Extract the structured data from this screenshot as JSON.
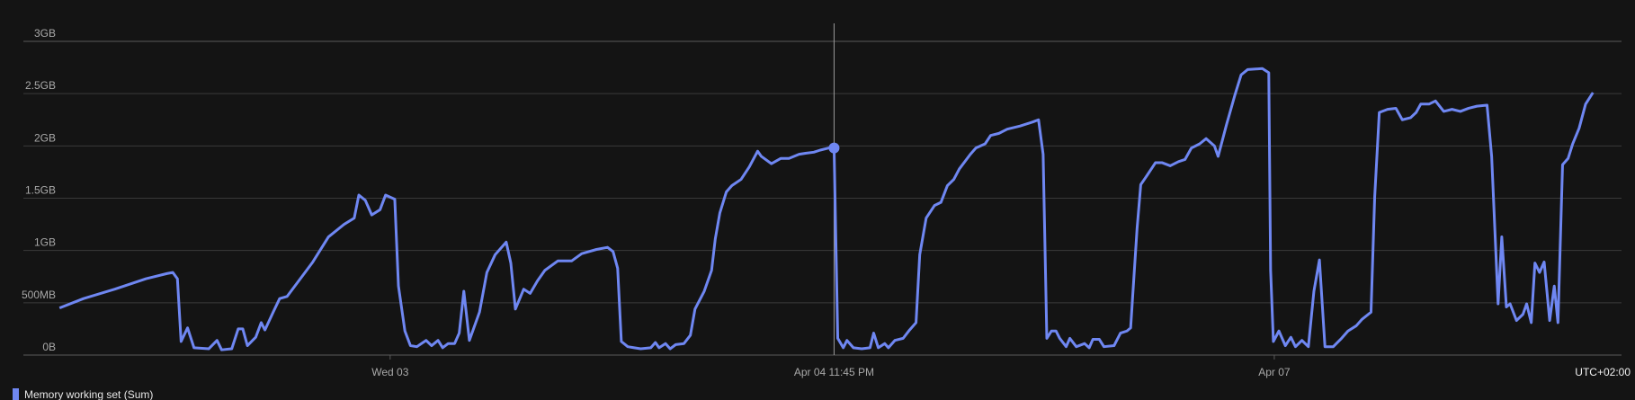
{
  "chart_data": {
    "type": "line",
    "x": [
      -35.9,
      -33.3,
      -29.9,
      -26.5,
      -24.2,
      -23.6,
      -23.1,
      -22.7,
      -22.0,
      -21.3,
      -19.7,
      -18.8,
      -18.3,
      -17.2,
      -16.5,
      -16.0,
      -15.5,
      -14.6,
      -14.0,
      -13.6,
      -12.7,
      -12.0,
      -11.2,
      -9.5,
      -8.4,
      -6.7,
      -5.0,
      -3.9,
      -3.4,
      -2.7,
      -2.0,
      -1.1,
      -0.5,
      0.5,
      0.9,
      1.6,
      2.2,
      2.9,
      3.9,
      4.5,
      5.2,
      5.7,
      6.3,
      7.0,
      7.5,
      8.0,
      8.6,
      9.7,
      10.5,
      11.4,
      12.6,
      13.1,
      13.6,
      14.5,
      15.2,
      16.0,
      16.8,
      18.2,
      19.7,
      20.8,
      22.4,
      23.6,
      24.2,
      24.7,
      25.1,
      25.8,
      26.5,
      27.2,
      28.3,
      28.8,
      29.2,
      29.9,
      30.4,
      31.0,
      31.9,
      32.6,
      33.1,
      34.1,
      34.9,
      35.3,
      35.8,
      36.5,
      37.1,
      38.1,
      39.0,
      39.9,
      40.3,
      41.4,
      42.4,
      43.3,
      44.4,
      45.1,
      46.0,
      46.7,
      47.6,
      48.2,
      48.6,
      49.2,
      49.6,
      50.3,
      51.2,
      52.1,
      52.5,
      53.0,
      53.7,
      54.1,
      54.8,
      55.7,
      56.4,
      57.1,
      57.5,
      58.2,
      59.1,
      59.8,
      60.5,
      61.2,
      61.8,
      63.0,
      63.6,
      64.6,
      65.2,
      66.1,
      67.0,
      68.4,
      69.8,
      70.4,
      70.9,
      71.3,
      71.8,
      72.3,
      72.7,
      73.4,
      73.8,
      74.5,
      75.4,
      75.9,
      76.3,
      77.0,
      77.5,
      78.6,
      79.3,
      80.0,
      80.4,
      81.1,
      81.5,
      82.2,
      83.1,
      83.8,
      84.7,
      85.6,
      86.3,
      87.0,
      87.9,
      88.6,
      89.5,
      89.9,
      90.8,
      91.7,
      92.4,
      93.1,
      94.7,
      95.4,
      95.6,
      95.9,
      96.5,
      97.2,
      97.8,
      98.3,
      99.0,
      99.7,
      100.3,
      100.9,
      101.5,
      102.4,
      103.3,
      104.0,
      104.9,
      105.5,
      106.5,
      106.9,
      107.4,
      108.3,
      109.2,
      109.9,
      110.8,
      111.4,
      111.9,
      112.8,
      113.5,
      114.4,
      115.3,
      116.2,
      117.1,
      118.0,
      119.1,
      119.6,
      120.3,
      120.7,
      121.2,
      121.6,
      122.3,
      123.0,
      123.4,
      123.9,
      124.3,
      124.8,
      125.3,
      125.9,
      126.4,
      126.8,
      127.3,
      127.9,
      128.4,
      129.1,
      129.8,
      130.6
    ],
    "series": [
      {
        "name": "Memory working set (Sum)",
        "color": "#6f87f2",
        "values": [
          0.45,
          0.54,
          0.63,
          0.73,
          0.78,
          0.79,
          0.73,
          0.13,
          0.26,
          0.07,
          0.06,
          0.14,
          0.05,
          0.06,
          0.25,
          0.25,
          0.09,
          0.17,
          0.31,
          0.24,
          0.41,
          0.54,
          0.56,
          0.76,
          0.89,
          1.13,
          1.25,
          1.31,
          1.53,
          1.48,
          1.34,
          1.39,
          1.53,
          1.49,
          0.66,
          0.23,
          0.09,
          0.08,
          0.14,
          0.09,
          0.14,
          0.07,
          0.11,
          0.11,
          0.21,
          0.61,
          0.14,
          0.41,
          0.79,
          0.96,
          1.08,
          0.88,
          0.44,
          0.63,
          0.59,
          0.71,
          0.81,
          0.9,
          0.9,
          0.97,
          1.01,
          1.03,
          0.99,
          0.83,
          0.13,
          0.08,
          0.07,
          0.06,
          0.07,
          0.12,
          0.07,
          0.11,
          0.06,
          0.1,
          0.11,
          0.19,
          0.44,
          0.61,
          0.81,
          1.11,
          1.36,
          1.56,
          1.62,
          1.68,
          1.8,
          1.95,
          1.9,
          1.83,
          1.88,
          1.88,
          1.92,
          1.93,
          1.94,
          1.96,
          1.98,
          1.98,
          0.16,
          0.07,
          0.14,
          0.07,
          0.06,
          0.07,
          0.21,
          0.07,
          0.11,
          0.07,
          0.14,
          0.16,
          0.24,
          0.31,
          0.96,
          1.31,
          1.43,
          1.46,
          1.62,
          1.68,
          1.78,
          1.92,
          1.98,
          2.02,
          2.1,
          2.12,
          2.16,
          2.19,
          2.23,
          2.25,
          1.92,
          0.16,
          0.23,
          0.23,
          0.16,
          0.08,
          0.16,
          0.08,
          0.11,
          0.07,
          0.15,
          0.15,
          0.08,
          0.09,
          0.21,
          0.23,
          0.26,
          1.21,
          1.63,
          1.72,
          1.84,
          1.84,
          1.81,
          1.85,
          1.87,
          1.98,
          2.02,
          2.07,
          2.0,
          1.9,
          2.2,
          2.48,
          2.68,
          2.73,
          2.74,
          2.7,
          0.81,
          0.13,
          0.23,
          0.09,
          0.17,
          0.08,
          0.14,
          0.08,
          0.61,
          0.91,
          0.08,
          0.08,
          0.16,
          0.23,
          0.28,
          0.34,
          0.41,
          1.51,
          2.32,
          2.35,
          2.36,
          2.25,
          2.27,
          2.32,
          2.4,
          2.4,
          2.43,
          2.33,
          2.35,
          2.33,
          2.36,
          2.38,
          2.39,
          1.9,
          0.49,
          1.13,
          0.46,
          0.49,
          0.33,
          0.39,
          0.49,
          0.31,
          0.88,
          0.79,
          0.89,
          0.33,
          0.66,
          0.31,
          1.82,
          1.88,
          2.02,
          2.17,
          2.4,
          2.51
        ]
      }
    ],
    "xlim": [
      -36.7,
      133.7
    ],
    "xticks": [
      {
        "value": 0,
        "label": "Wed 03"
      },
      {
        "value": 96,
        "label": "Apr 07"
      }
    ],
    "cursor": {
      "value": 48.2,
      "label": "Apr 04 11:45 PM"
    },
    "timezone": "UTC+02:00",
    "ylim": [
      0,
      3
    ],
    "yticks": [
      {
        "value": 0,
        "label": "0B"
      },
      {
        "value": 0.5,
        "label": "500MB"
      },
      {
        "value": 1,
        "label": "1GB"
      },
      {
        "value": 1.5,
        "label": "1.5GB"
      },
      {
        "value": 2,
        "label": "2GB"
      },
      {
        "value": 2.5,
        "label": "2.5GB"
      },
      {
        "value": 3,
        "label": "3GB"
      }
    ],
    "grid": true
  }
}
